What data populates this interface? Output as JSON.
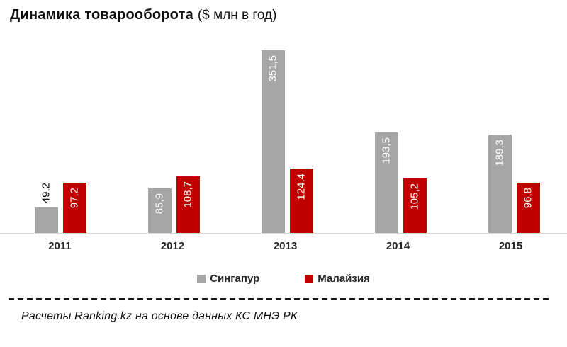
{
  "title": {
    "main": "Динамика  товарооборота",
    "units": "($ млн в год)"
  },
  "chart_data": {
    "type": "bar",
    "title": "Динамика товарооборота ($ млн в год)",
    "categories": [
      "2011",
      "2012",
      "2013",
      "2014",
      "2015"
    ],
    "series": [
      {
        "name": "Сингапур",
        "key": "singapore",
        "color": "#A6A6A6",
        "values": [
          49.2,
          85.9,
          351.5,
          193.5,
          189.3
        ],
        "labels": [
          "49,2",
          "85,9",
          "351,5",
          "193,5",
          "189,3"
        ]
      },
      {
        "name": "Малайзия",
        "key": "malaysia",
        "color": "#C00000",
        "values": [
          97.2,
          108.7,
          124.4,
          105.2,
          96.8
        ],
        "labels": [
          "97,2",
          "108,7",
          "124,4",
          "105,2",
          "96,8"
        ]
      }
    ],
    "xlabel": "",
    "ylabel": "",
    "ylim": [
      0,
      360
    ],
    "grid": false,
    "y_axis_visible": false,
    "legend_position": "bottom",
    "value_label_rotation": 90,
    "decimal_separator": ",",
    "axis_line_color": "#D9D9D9"
  },
  "footer": {
    "source": "Расчеты Ranking.kz на основе данных  КС МНЭ РК"
  }
}
